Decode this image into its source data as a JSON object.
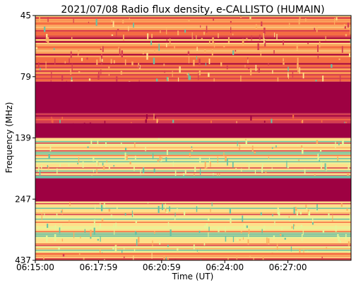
{
  "chart_data": {
    "type": "heatmap",
    "title": "2021/07/08  Radio flux density, e-CALLISTO (HUMAIN)",
    "xlabel": "Time (UT)",
    "ylabel": "Frequency (MHz)",
    "x_ticks": [
      "06:15:00",
      "06:17:59",
      "06:20:59",
      "06:24:00",
      "06:27:00"
    ],
    "y_ticks": [
      "45",
      "79",
      "139",
      "247",
      "437"
    ],
    "colormap": "Spectral (dark red = low, yellow = mid, teal = high)",
    "colors": {
      "low": "#9e0142",
      "mid_low": "#d53e4f",
      "mid": "#f46d43",
      "mid_high": "#fdae61",
      "high": "#fee08b",
      "peak": "#e6f598",
      "max": "#66c2a5"
    },
    "bands": [
      {
        "from": 0.0,
        "to": 0.27,
        "level": "mid",
        "texture": "noisy"
      },
      {
        "from": 0.27,
        "to": 0.4,
        "level": "low",
        "texture": "flat"
      },
      {
        "from": 0.4,
        "to": 0.44,
        "level": "mid_low",
        "texture": "noisy"
      },
      {
        "from": 0.44,
        "to": 0.5,
        "level": "low",
        "texture": "flat"
      },
      {
        "from": 0.5,
        "to": 0.655,
        "level": "high",
        "texture": "striped"
      },
      {
        "from": 0.655,
        "to": 0.665,
        "level": "max",
        "texture": "flat"
      },
      {
        "from": 0.665,
        "to": 0.76,
        "level": "low",
        "texture": "flat"
      },
      {
        "from": 0.76,
        "to": 0.97,
        "level": "high",
        "texture": "striped"
      },
      {
        "from": 0.97,
        "to": 1.0,
        "level": "mid",
        "texture": "noisy"
      }
    ]
  }
}
